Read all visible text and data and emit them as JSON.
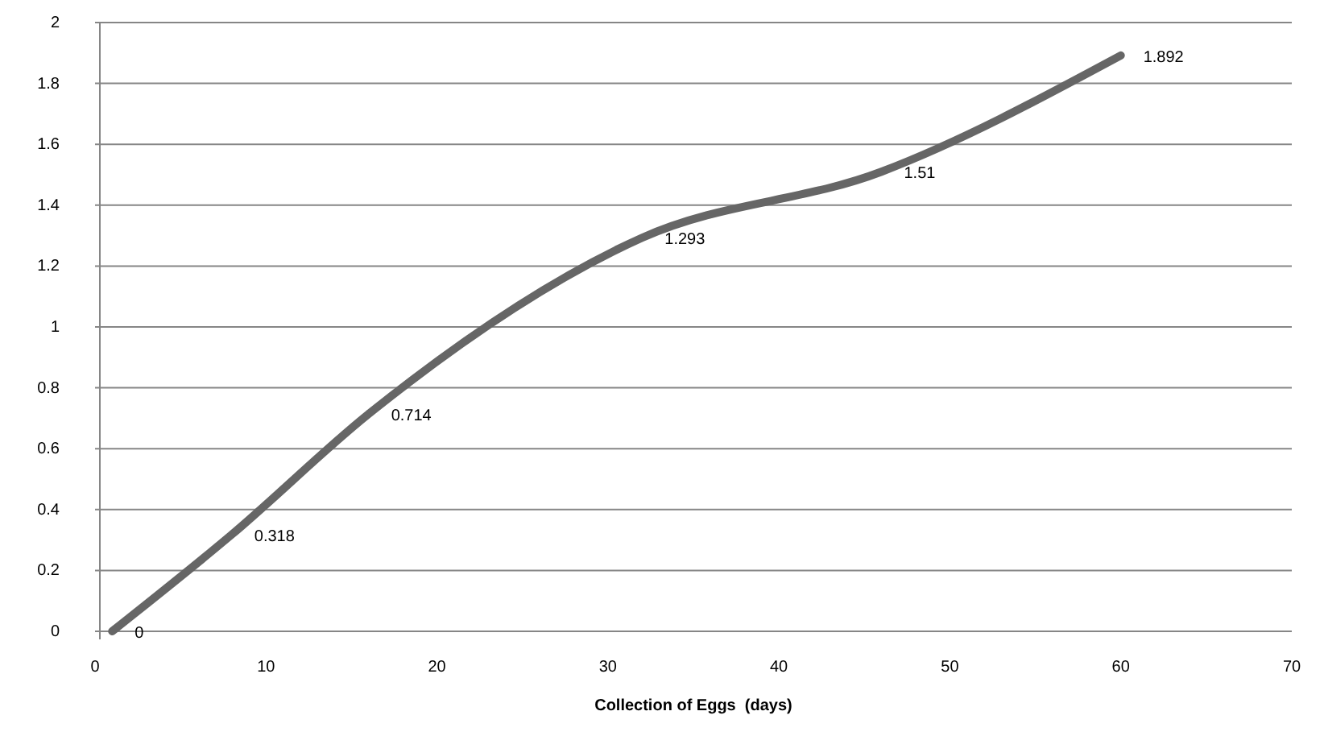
{
  "chart_data": {
    "type": "line",
    "xlabel": "Collection of Eggs  (days)",
    "x": [
      1,
      8,
      16,
      32,
      46,
      60
    ],
    "series": [
      {
        "color": "#666666",
        "values": [
          0,
          0.318,
          0.714,
          1.293,
          1.51,
          1.892
        ]
      }
    ],
    "xlim": [
      0,
      70
    ],
    "xticks": [
      0,
      10,
      20,
      30,
      40,
      50,
      60,
      70
    ],
    "ylim": [
      0,
      2
    ],
    "yticks": [
      0,
      0.2,
      0.4,
      0.6,
      0.8,
      1,
      1.2,
      1.4,
      1.6,
      1.8,
      2
    ],
    "grid": "y",
    "data_labels": true,
    "marker": "none",
    "line_style": "solid"
  }
}
